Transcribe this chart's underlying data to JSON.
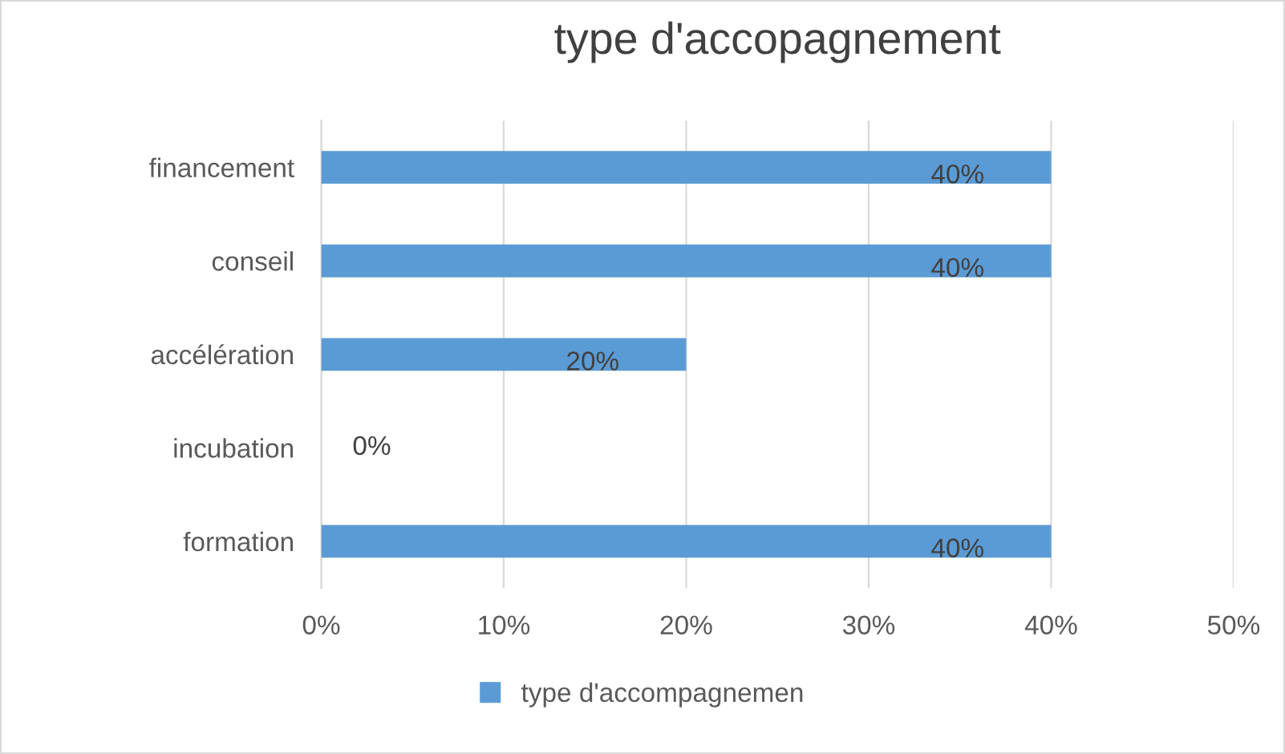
{
  "chart_data": {
    "type": "bar",
    "orientation": "horizontal",
    "title": "type d'accopagnement",
    "categories": [
      "financement",
      "conseil",
      "accélération",
      "incubation",
      "formation"
    ],
    "series": [
      {
        "name": "type d'accompagnemen",
        "color": "#5b9bd5",
        "values": [
          40,
          40,
          20,
          0,
          40
        ],
        "value_labels": [
          "40%",
          "40%",
          "20%",
          "0%",
          "40%"
        ]
      }
    ],
    "xlim": [
      0,
      50
    ],
    "xticks": [
      {
        "value": 0,
        "label": "0%"
      },
      {
        "value": 10,
        "label": "10%"
      },
      {
        "value": 20,
        "label": "20%"
      },
      {
        "value": 30,
        "label": "30%"
      },
      {
        "value": 40,
        "label": "40%"
      },
      {
        "value": 50,
        "label": "50%"
      }
    ],
    "grid": "x",
    "legend": "bottom"
  }
}
